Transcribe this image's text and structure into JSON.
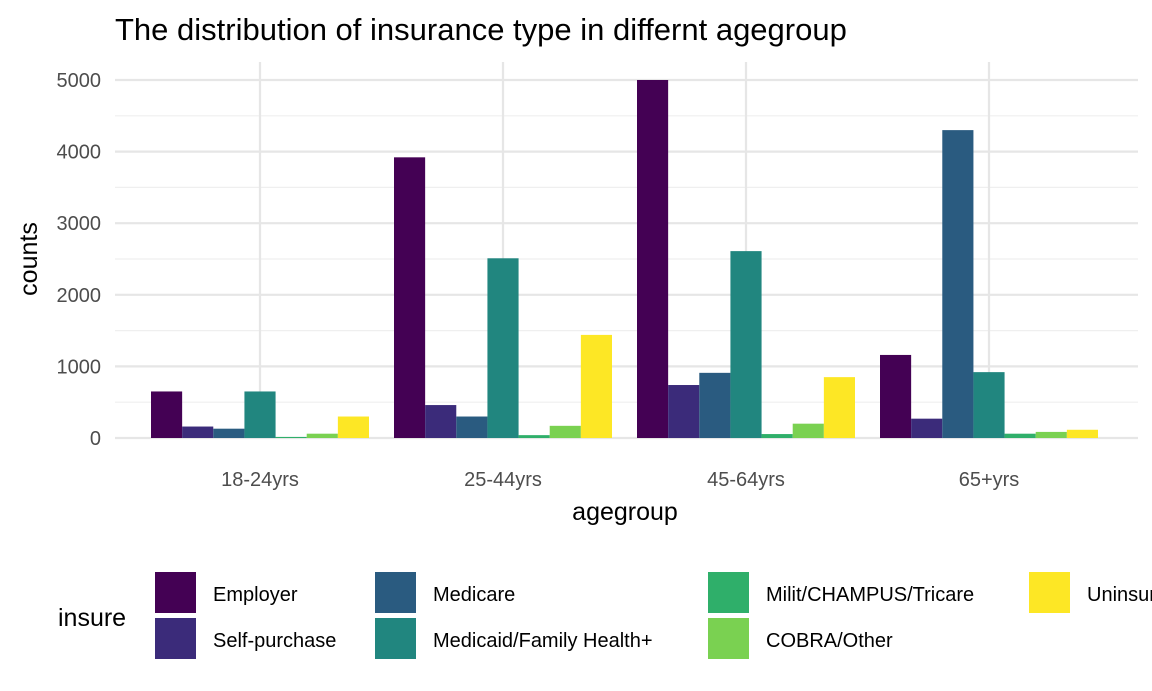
{
  "chart_data": {
    "type": "bar",
    "title": "The distribution of insurance type in differnt agegroup",
    "xlabel": "agegroup",
    "ylabel": "counts",
    "ylim": [
      0,
      5000
    ],
    "yticks": [
      "0",
      "1000",
      "2000",
      "3000",
      "4000",
      "5000"
    ],
    "categories": [
      "18-24yrs",
      "25-44yrs",
      "45-64yrs",
      "65+yrs"
    ],
    "legend_title": "insure",
    "legend_position": "bottom",
    "grid": true,
    "series": [
      {
        "name": "Employer",
        "color": "#440154",
        "values": [
          650,
          3920,
          5000,
          1160
        ]
      },
      {
        "name": "Self-purchase",
        "color": "#3B2B7A",
        "values": [
          160,
          460,
          740,
          270
        ]
      },
      {
        "name": "Medicare",
        "color": "#2A5B80",
        "values": [
          130,
          300,
          910,
          4300
        ]
      },
      {
        "name": "Medicaid/Family Health+",
        "color": "#21867F",
        "values": [
          650,
          2510,
          2610,
          920
        ]
      },
      {
        "name": "Milit/CHAMPUS/Tricare",
        "color": "#2FAF6A",
        "values": [
          15,
          40,
          55,
          60
        ]
      },
      {
        "name": "COBRA/Other",
        "color": "#7AD151",
        "values": [
          60,
          170,
          200,
          85
        ]
      },
      {
        "name": "Uninsured",
        "color": "#FDE725",
        "values": [
          300,
          1440,
          850,
          115
        ]
      }
    ]
  }
}
